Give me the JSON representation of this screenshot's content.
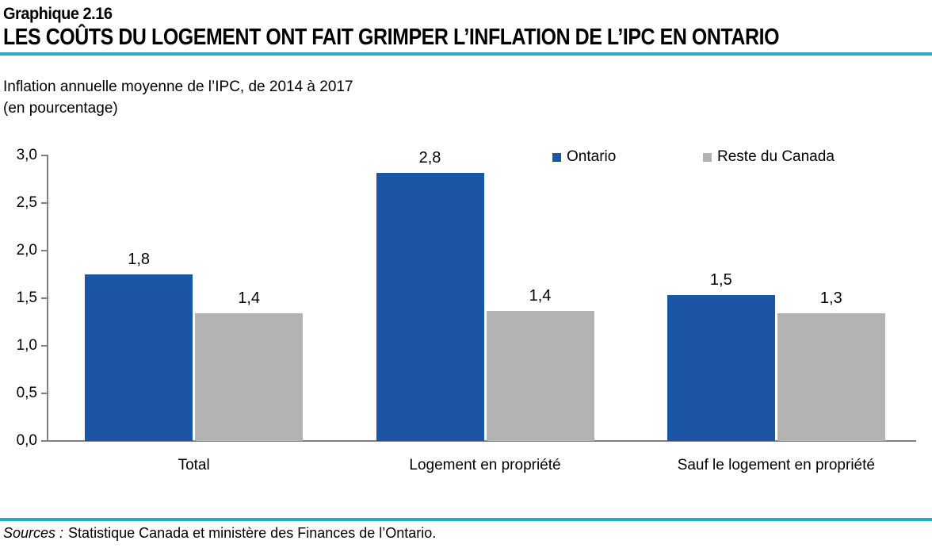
{
  "header": {
    "chart_number": "Graphique 2.16",
    "title": "LES COÛTS DU LOGEMENT ONT FAIT GRIMPER L’INFLATION DE L’IPC EN ONTARIO"
  },
  "subtitle": {
    "line1": "Inflation annuelle moyenne de l’IPC, de 2014 à 2017",
    "line2": "(en pourcentage)"
  },
  "chart_data": {
    "type": "bar",
    "title": "Inflation annuelle moyenne de l’IPC, de 2014 à 2017 (en pourcentage)",
    "categories": [
      "Total",
      "Logement en propriété",
      "Sauf le logement en propriété"
    ],
    "series": [
      {
        "name": "Ontario",
        "color": "#1C55A4",
        "values": [
          1.8,
          2.8,
          1.5
        ],
        "value_labels": [
          "1,8",
          "2,8",
          "1,5"
        ],
        "drawn_heights": [
          1.75,
          2.82,
          1.53
        ]
      },
      {
        "name": "Reste du Canada",
        "color": "#B3B3B3",
        "values": [
          1.4,
          1.4,
          1.3
        ],
        "value_labels": [
          "1,4",
          "1,4",
          "1,3"
        ],
        "drawn_heights": [
          1.34,
          1.37,
          1.34
        ]
      }
    ],
    "xlabel": "",
    "ylabel": "",
    "ylim": [
      0,
      3
    ],
    "y_ticks": [
      {
        "value": 0,
        "label": "0,0"
      },
      {
        "value": 0.5,
        "label": "0,5"
      },
      {
        "value": 1,
        "label": "1,0"
      },
      {
        "value": 1.5,
        "label": "1,5"
      },
      {
        "value": 2,
        "label": "2,0"
      },
      {
        "value": 2.5,
        "label": "2,5"
      },
      {
        "value": 3,
        "label": "3,0"
      }
    ],
    "legend_position": "top-right",
    "grid": false
  },
  "footer": {
    "sources_label": "Sources :",
    "sources_text": "Statistique Canada et ministère des Finances de l’Ontario."
  },
  "colors": {
    "ontario_blue": "#1C55A4",
    "rest_gray": "#B3B3B3",
    "accent_teal": "#29ACC9",
    "axis_gray": "#808080",
    "text_black": "#000000"
  }
}
